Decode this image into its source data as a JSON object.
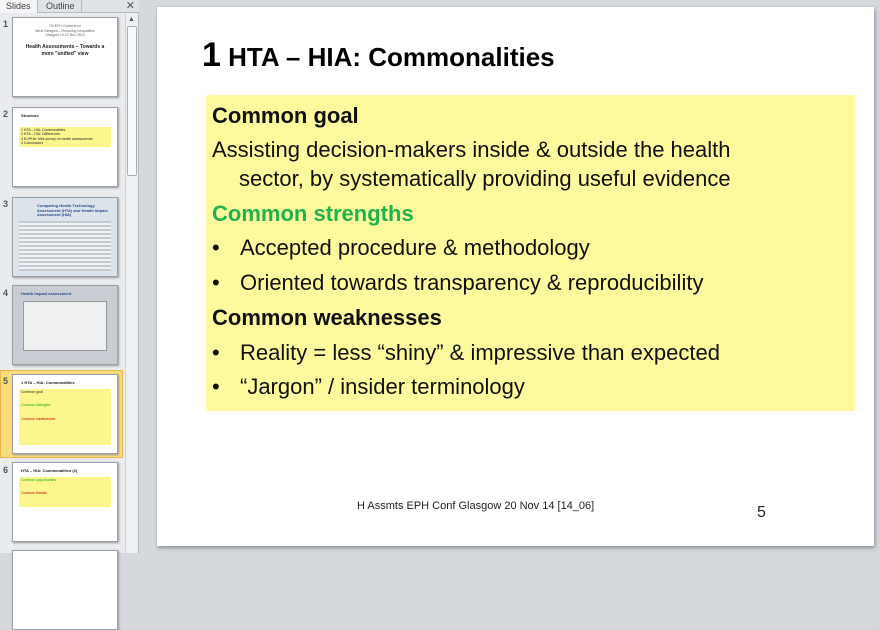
{
  "panel": {
    "tabs": [
      "Slides",
      "Outline"
    ],
    "close_icon": "close-icon"
  },
  "thumbnails": [
    {
      "number": "1",
      "title": "Health Assessments – Towards a more \"unified\" view",
      "lines": [
        "7th EPH Conference",
        "West Glasgow – Reducing inequalities",
        "Glasgow 19-22 Nov 2014"
      ]
    },
    {
      "number": "2",
      "title": "Structure",
      "lines": [
        "1 HTA – HIA: Commonalities",
        "2 HTA – HIA: Differences",
        "3 EUPHA: Mini-survey on health assessments",
        "4 Conclusions"
      ]
    },
    {
      "number": "3",
      "title": "Comparing Health Technology Assessment (HTA) and Health Impact Assessment (HIA)",
      "lines": []
    },
    {
      "number": "4",
      "title": "Health impact assessment",
      "lines": []
    },
    {
      "number": "5",
      "title": "1 HTA – HIA: Commonalities",
      "lines": [
        "Common goal",
        "Common strengths",
        "Common weaknesses"
      ]
    },
    {
      "number": "6",
      "title": "HTA – HIA: Commonalities (2)",
      "lines": [
        "Common opportunities",
        "Common threats"
      ]
    }
  ],
  "slide": {
    "title_number": "1",
    "title": "HTA – HIA: Commonalities",
    "goal_heading": "Common goal",
    "goal_text_1": "Assisting decision-makers inside & outside the health",
    "goal_text_2": "sector, by systematically providing useful evidence",
    "strengths_heading": "Common strengths",
    "strengths": [
      "Accepted procedure & methodology",
      "Oriented towards transparency & reproducibility"
    ],
    "weaknesses_heading": "Common weaknesses",
    "weaknesses": [
      "Reality = less “shiny” & impressive than expected",
      "“Jargon” / insider terminology"
    ],
    "bullet": "•",
    "footer": "H Assmts  EPH Conf Glasgow  20 Nov 14 [14_06]",
    "page_number": "5"
  },
  "colors": {
    "highlight": "#fdfa9e",
    "strengths": "#22b14c",
    "weaknesses": "#cc0000",
    "selected_thumb": "#fbdc7d"
  }
}
